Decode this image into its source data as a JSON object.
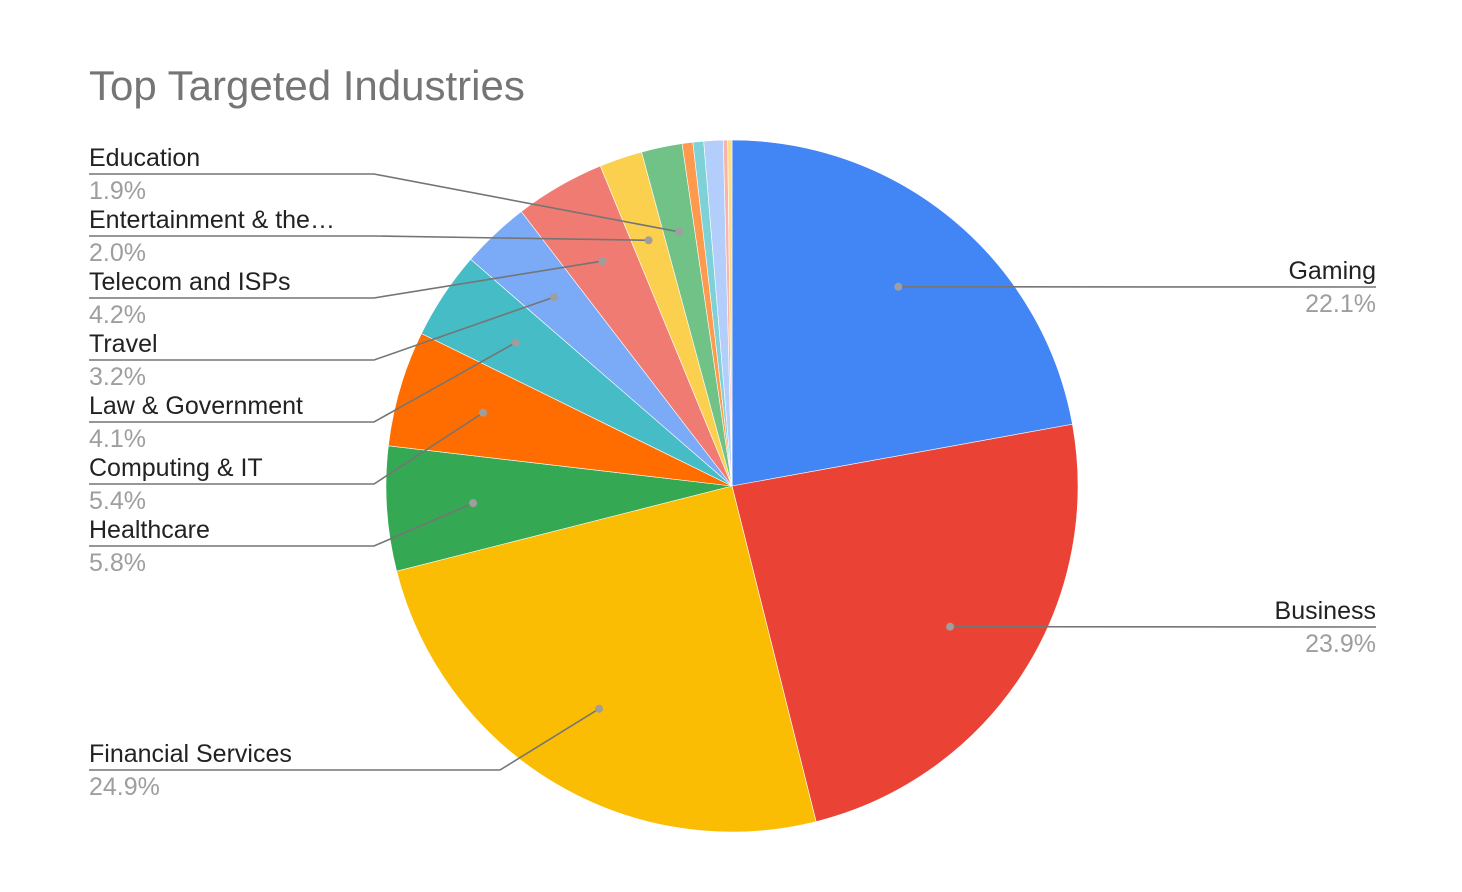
{
  "chart_data": {
    "type": "pie",
    "title": "Top Targeted Industries",
    "start_angle_deg": 0,
    "direction": "clockwise",
    "slices": [
      {
        "name": "Gaming",
        "pct_label": "22.1%",
        "value": 22.1,
        "color": "#4285f4",
        "labeled": true,
        "side": "right"
      },
      {
        "name": "Business",
        "pct_label": "23.9%",
        "value": 23.9,
        "color": "#ea4335",
        "labeled": true,
        "side": "right"
      },
      {
        "name": "Financial Services",
        "pct_label": "24.9%",
        "value": 24.9,
        "color": "#fbbc04",
        "labeled": true,
        "side": "left"
      },
      {
        "name": "Healthcare",
        "pct_label": "5.8%",
        "value": 5.8,
        "color": "#34a853",
        "labeled": true,
        "side": "left"
      },
      {
        "name": "Computing & IT",
        "pct_label": "5.4%",
        "value": 5.4,
        "color": "#ff6d01",
        "labeled": true,
        "side": "left"
      },
      {
        "name": "Law & Government",
        "pct_label": "4.1%",
        "value": 4.1,
        "color": "#46bdc6",
        "labeled": true,
        "side": "left"
      },
      {
        "name": "Travel",
        "pct_label": "3.2%",
        "value": 3.2,
        "color": "#7baaf7",
        "labeled": true,
        "side": "left"
      },
      {
        "name": "Telecom and ISPs",
        "pct_label": "4.2%",
        "value": 4.2,
        "color": "#f07b72",
        "labeled": true,
        "side": "left"
      },
      {
        "name": "Entertainment & the…",
        "pct_label": "2.0%",
        "value": 2.0,
        "color": "#fcd04f",
        "labeled": true,
        "side": "left"
      },
      {
        "name": "Education",
        "pct_label": "1.9%",
        "value": 1.9,
        "color": "#71c287",
        "labeled": true,
        "side": "left"
      },
      {
        "name": "",
        "pct_label": "",
        "value": 0.5,
        "color": "#ff994d",
        "labeled": false
      },
      {
        "name": "",
        "pct_label": "",
        "value": 0.5,
        "color": "#7ed1d7",
        "labeled": false
      },
      {
        "name": "",
        "pct_label": "",
        "value": 0.9,
        "color": "#b3cefb",
        "labeled": false
      },
      {
        "name": "",
        "pct_label": "",
        "value": 0.2,
        "color": "#f7b4ae",
        "labeled": false
      },
      {
        "name": "",
        "pct_label": "",
        "value": 0.2,
        "color": "#fdde80",
        "labeled": false
      }
    ]
  }
}
